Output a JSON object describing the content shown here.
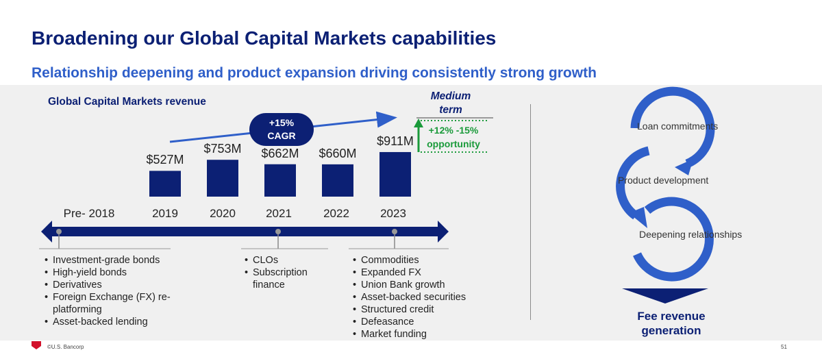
{
  "header": {
    "title": "Broadening our Global Capital Markets capabilities",
    "subtitle": "Relationship deepening and product expansion driving consistently strong growth"
  },
  "chart_data": {
    "type": "bar",
    "title": "Global Capital Markets revenue",
    "categories": [
      "2019",
      "2020",
      "2021",
      "2022",
      "2023"
    ],
    "values": [
      527,
      753,
      662,
      660,
      911
    ],
    "value_labels": [
      "$527M",
      "$753M",
      "$662M",
      "$660M",
      "$911M"
    ],
    "unit": "$M",
    "timeline_labels": [
      "Pre- 2018",
      "2019",
      "2020",
      "2021",
      "2022",
      "2023"
    ],
    "annotations": {
      "cagr_line1": "+15%",
      "cagr_line2": "CAGR",
      "medium_term_line1": "Medium",
      "medium_term_line2": "term",
      "opportunity_line1": "+12% -15%",
      "opportunity_line2": "opportunity"
    },
    "colors": {
      "bar": "#0c2074",
      "trend": "#2f5fc9",
      "growth": "#1a9a3a"
    }
  },
  "milestones": [
    {
      "period": "Pre- 2018",
      "items": [
        "Investment-grade bonds",
        "High-yield bonds",
        "Derivatives",
        "Foreign Exchange (FX) re-platforming",
        "Asset-backed lending"
      ]
    },
    {
      "period": "2021",
      "items": [
        "CLOs",
        "Subscription finance"
      ]
    },
    {
      "period": "2023",
      "items": [
        "Commodities",
        "Expanded FX",
        "Union Bank growth",
        "Asset-backed securities",
        "Structured credit",
        "Defeasance",
        "Market funding"
      ]
    }
  ],
  "cycle": {
    "steps": [
      "Loan commitments",
      "Product development",
      "Deepening relationships"
    ],
    "outcome": "Fee revenue generation"
  },
  "footer": {
    "copyright": "©U.S. Bancorp",
    "page": "51"
  },
  "colors": {
    "navy": "#0c2074",
    "blue": "#2f5fc9",
    "green": "#1a9a3a",
    "panel": "#f0f0f0",
    "logo_red": "#d2112b"
  }
}
